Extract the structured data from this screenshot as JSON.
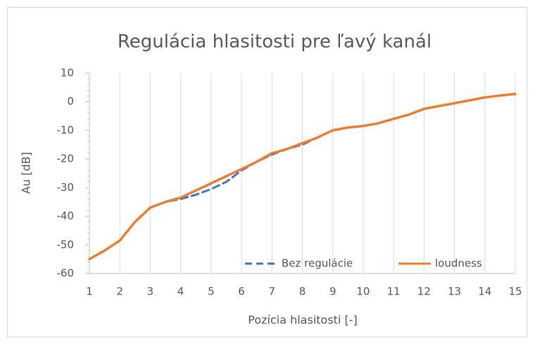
{
  "chart_data": {
    "type": "line",
    "title": "Regulácia hlasitosti pre ľavý kanál",
    "xlabel": "Pozícia hlasitosti [-]",
    "ylabel": "Au [dB]",
    "x": [
      1,
      1.5,
      2,
      2.5,
      3,
      3.5,
      4,
      4.5,
      5,
      5.5,
      6,
      6.5,
      7,
      7.5,
      8,
      8.5,
      9,
      9.5,
      10,
      10.5,
      11,
      11.5,
      12,
      12.5,
      13,
      13.5,
      14,
      14.5,
      15
    ],
    "series": [
      {
        "name": "Bez regulácie",
        "color": "#4472c4",
        "dash": true,
        "values": [
          -55,
          -52,
          -48.5,
          -42,
          -37,
          -35,
          -34,
          -32.5,
          -30.5,
          -28,
          -24,
          -21,
          -18.5,
          -16.5,
          -15,
          -12.5,
          -10,
          -9,
          -8.5,
          -7.5,
          -6,
          -4.5,
          -2.5,
          -1.5,
          -0.5,
          0.5,
          1.5,
          2.2,
          2.7
        ]
      },
      {
        "name": "loudness",
        "color": "#ed7d31",
        "dash": false,
        "values": [
          -55,
          -52,
          -48.5,
          -42,
          -37,
          -35,
          -33.5,
          -31,
          -28.5,
          -26,
          -23.5,
          -21,
          -18,
          -16.5,
          -14.5,
          -12.5,
          -10,
          -9,
          -8.5,
          -7.5,
          -6,
          -4.5,
          -2.5,
          -1.5,
          -0.5,
          0.5,
          1.5,
          2.2,
          2.7
        ]
      }
    ],
    "xlim": [
      1,
      15
    ],
    "xticks": [
      1,
      2,
      3,
      4,
      5,
      6,
      7,
      8,
      9,
      10,
      11,
      12,
      13,
      14,
      15
    ],
    "ylim": [
      -60,
      10
    ],
    "yticks": [
      -60,
      -50,
      -40,
      -30,
      -20,
      -10,
      0,
      10
    ],
    "grid": true,
    "legend": "bottom-right"
  }
}
